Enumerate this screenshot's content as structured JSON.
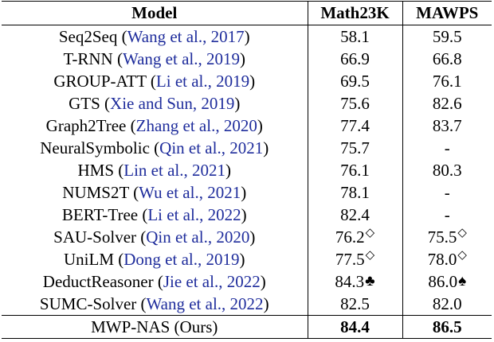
{
  "table": {
    "headers": [
      "Model",
      "Math23K",
      "MAWPS"
    ],
    "rows": [
      {
        "model": "Seq2Seq",
        "cite": "Wang et al., 2017",
        "math23k": "58.1",
        "math23k_mark": "",
        "mawps": "59.5",
        "mawps_mark": ""
      },
      {
        "model": "T-RNN",
        "cite": "Wang et al., 2019",
        "math23k": "66.9",
        "math23k_mark": "",
        "mawps": "66.8",
        "mawps_mark": ""
      },
      {
        "model": "GROUP-ATT",
        "cite": "Li et al., 2019",
        "math23k": "69.5",
        "math23k_mark": "",
        "mawps": "76.1",
        "mawps_mark": ""
      },
      {
        "model": "GTS",
        "cite": "Xie and Sun, 2019",
        "math23k": "75.6",
        "math23k_mark": "",
        "mawps": "82.6",
        "mawps_mark": ""
      },
      {
        "model": "Graph2Tree",
        "cite": "Zhang et al., 2020",
        "math23k": "77.4",
        "math23k_mark": "",
        "mawps": "83.7",
        "mawps_mark": ""
      },
      {
        "model": "NeuralSymbolic",
        "cite": "Qin et al., 2021",
        "math23k": "75.7",
        "math23k_mark": "",
        "mawps": "-",
        "mawps_mark": ""
      },
      {
        "model": "HMS",
        "cite": "Lin et al., 2021",
        "math23k": "76.1",
        "math23k_mark": "",
        "mawps": "80.3",
        "mawps_mark": ""
      },
      {
        "model": "NUMS2T",
        "cite": "Wu et al., 2021",
        "math23k": "78.1",
        "math23k_mark": "",
        "mawps": "-",
        "mawps_mark": ""
      },
      {
        "model": "BERT-Tree",
        "cite": "Li et al., 2022",
        "math23k": "82.4",
        "math23k_mark": "",
        "mawps": "-",
        "mawps_mark": ""
      },
      {
        "model": "SAU-Solver",
        "cite": "Qin et al., 2020",
        "math23k": "76.2",
        "math23k_mark": "◇",
        "mawps": "75.5",
        "mawps_mark": "◇"
      },
      {
        "model": "UniLM",
        "cite": "Dong et al., 2019",
        "math23k": "77.5",
        "math23k_mark": "◇",
        "mawps": "78.0",
        "mawps_mark": "◇"
      },
      {
        "model": "DeductReasoner",
        "cite": "Jie et al., 2022",
        "math23k": "84.3",
        "math23k_mark": "♣",
        "mawps": "86.0",
        "mawps_mark": "♠"
      },
      {
        "model": "SUMC-Solver",
        "cite": "Wang et al., 2022",
        "math23k": "82.5",
        "math23k_mark": "",
        "mawps": "82.0",
        "mawps_mark": ""
      }
    ],
    "ours": {
      "model": "MWP-NAS (Ours)",
      "math23k": "84.4",
      "mawps": "86.5"
    }
  }
}
